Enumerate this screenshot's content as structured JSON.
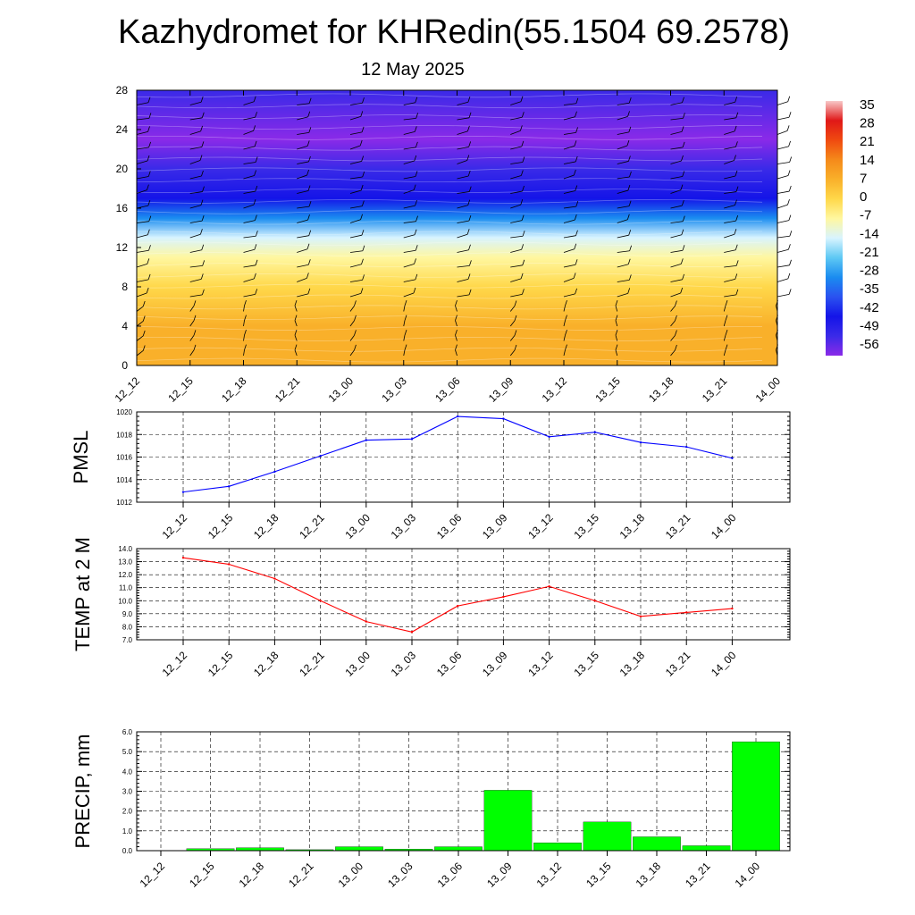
{
  "title": "Kazhydromet for KHRedin(55.1504 69.2578)",
  "subtitle": "12 May 2025",
  "time_labels": [
    "12_12",
    "12_15",
    "12_18",
    "12_21",
    "13_00",
    "13_03",
    "13_06",
    "13_09",
    "13_12",
    "13_15",
    "13_18",
    "13_21",
    "14_00"
  ],
  "colorbar": {
    "labels": [
      "35",
      "28",
      "21",
      "14",
      "7",
      "0",
      "-7",
      "-14",
      "-21",
      "-28",
      "-35",
      "-42",
      "-49",
      "-56"
    ],
    "colors": [
      "#f8c8c8",
      "#e01818",
      "#f04a10",
      "#f58a1a",
      "#f9b02a",
      "#ffd84a",
      "#fff7a0",
      "#d8f4ff",
      "#5ec8f4",
      "#1a8cf0",
      "#2a52f0",
      "#1414e8",
      "#3a2ae8",
      "#8a2ae8"
    ]
  },
  "chart_data": [
    {
      "type": "heatmap",
      "name": "temperature-wind-profile",
      "categories": [
        "12_12",
        "12_15",
        "12_18",
        "12_21",
        "13_00",
        "13_03",
        "13_06",
        "13_09",
        "13_12",
        "13_15",
        "13_18",
        "13_21",
        "14_00"
      ],
      "ylim": [
        0,
        28
      ],
      "y_ticks": [
        "0",
        "4",
        "8",
        "12",
        "16",
        "20",
        "24",
        "28"
      ],
      "value_range": [
        -56,
        35
      ],
      "profile": [
        {
          "level": 0,
          "value": 10
        },
        {
          "level": 4,
          "value": 7
        },
        {
          "level": 8,
          "value": 1
        },
        {
          "level": 11,
          "value": -6
        },
        {
          "level": 13,
          "value": -14
        },
        {
          "level": 15,
          "value": -28
        },
        {
          "level": 17,
          "value": -42
        },
        {
          "level": 20,
          "value": -49
        },
        {
          "level": 23,
          "value": -56
        },
        {
          "level": 28,
          "value": -50
        }
      ]
    },
    {
      "type": "line",
      "name": "pmsl",
      "ylabel": "PMSL",
      "categories": [
        "12_12",
        "12_15",
        "12_18",
        "12_21",
        "13_00",
        "13_03",
        "13_06",
        "13_09",
        "13_12",
        "13_15",
        "13_18",
        "13_21",
        "14_00"
      ],
      "values": [
        1012.9,
        1013.4,
        1014.7,
        1016.1,
        1017.5,
        1017.6,
        1019.6,
        1019.4,
        1017.8,
        1018.2,
        1017.3,
        1016.9,
        1015.9
      ],
      "ylim": [
        1012,
        1020
      ],
      "y_ticks": [
        "1012",
        "1014",
        "1016",
        "1018",
        "1020"
      ],
      "color": "#0000ff",
      "grid": true
    },
    {
      "type": "line",
      "name": "temp-2m",
      "ylabel": "TEMP at 2 M",
      "categories": [
        "12_12",
        "12_15",
        "12_18",
        "12_21",
        "13_00",
        "13_03",
        "13_06",
        "13_09",
        "13_12",
        "13_15",
        "13_18",
        "13_21",
        "14_00"
      ],
      "values": [
        13.3,
        12.8,
        11.7,
        10.0,
        8.4,
        7.6,
        9.6,
        10.3,
        11.1,
        10.0,
        8.8,
        9.1,
        9.4
      ],
      "ylim": [
        7.0,
        14.0
      ],
      "y_ticks": [
        "7.0",
        "8.0",
        "9.0",
        "10.0",
        "11.0",
        "12.0",
        "13.0",
        "14.0"
      ],
      "color": "#ff0000",
      "grid": true
    },
    {
      "type": "bar",
      "name": "precip",
      "ylabel": "PRECIP, mm",
      "categories": [
        "12_12",
        "12_15",
        "12_18",
        "12_21",
        "13_00",
        "13_03",
        "13_06",
        "13_09",
        "13_12",
        "13_15",
        "13_18",
        "13_21",
        "14_00"
      ],
      "values": [
        0.0,
        0.1,
        0.15,
        0.05,
        0.2,
        0.08,
        0.2,
        3.05,
        0.4,
        1.45,
        0.7,
        0.25,
        5.5
      ],
      "ylim": [
        0.0,
        6.0
      ],
      "y_ticks": [
        "0.0",
        "1.0",
        "2.0",
        "3.0",
        "4.0",
        "5.0",
        "6.0"
      ],
      "color": "#00ff00",
      "grid": true
    }
  ]
}
